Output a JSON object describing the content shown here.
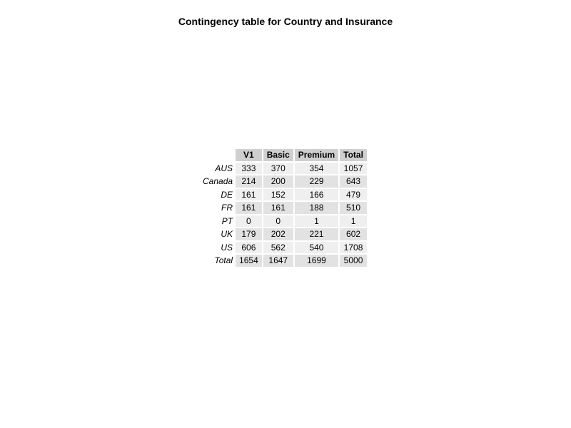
{
  "title": "Contingency table for Country and Insurance",
  "chart_data": {
    "type": "table",
    "title": "Contingency table for Country and Insurance",
    "columns": [
      "V1",
      "Basic",
      "Premium",
      "Total"
    ],
    "rows": [
      {
        "label": "AUS",
        "values": [
          "333",
          "370",
          "354",
          "1057"
        ]
      },
      {
        "label": "Canada",
        "values": [
          "214",
          "200",
          "229",
          "643"
        ]
      },
      {
        "label": "DE",
        "values": [
          "161",
          "152",
          "166",
          "479"
        ]
      },
      {
        "label": "FR",
        "values": [
          "161",
          "161",
          "188",
          "510"
        ]
      },
      {
        "label": "PT",
        "values": [
          "0",
          "0",
          "1",
          "1"
        ]
      },
      {
        "label": "UK",
        "values": [
          "179",
          "202",
          "221",
          "602"
        ]
      },
      {
        "label": "US",
        "values": [
          "606",
          "562",
          "540",
          "1708"
        ]
      },
      {
        "label": "Total",
        "values": [
          "1654",
          "1647",
          "1699",
          "5000"
        ]
      }
    ],
    "colors": {
      "header_fill": "#cfcfcf",
      "row_fill_light": "#efefef",
      "row_fill_dark": "#e2e2e2"
    }
  }
}
